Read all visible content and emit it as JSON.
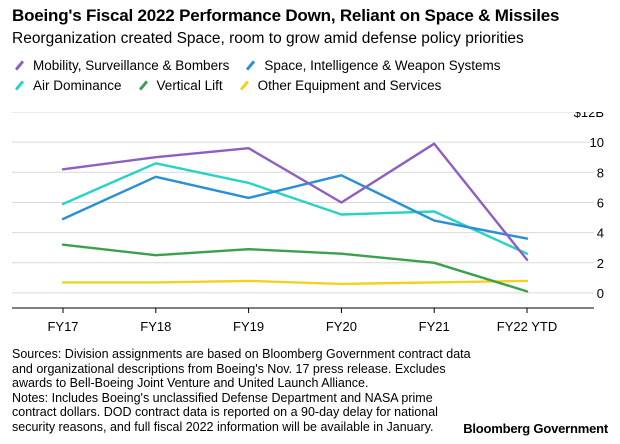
{
  "title": "Boeing's Fiscal 2022 Performance Down, Reliant on Space & Missiles",
  "subtitle": "Reorganization created Space, room to grow amid defense policy priorities",
  "footnote_lines": [
    "Sources: Division assignments are based on Bloomberg Government contract data",
    "and organizational descriptions from Boeing's Nov. 17 press release. Excludes",
    "awards to Bell-Boeing Joint Venture and United Launch Alliance.",
    "Notes: Includes Boeing's unclassified Defense Department and NASA prime",
    "contract dollars. DOD contract data is reported on a 90-day delay for national",
    "security reasons, and full fiscal 2022 information will be available in January."
  ],
  "brand": "Bloomberg Government",
  "chart_data": {
    "type": "line",
    "title": "Boeing's Fiscal 2022 Performance Down, Reliant on Space & Missiles",
    "subtitle": "Reorganization created Space, room to grow amid defense policy priorities",
    "x": [
      "FY17",
      "FY18",
      "FY19",
      "FY20",
      "FY21",
      "FY22 YTD"
    ],
    "yticks": [
      0,
      2,
      4,
      6,
      8,
      10
    ],
    "ytick_labels": [
      "0",
      "2",
      "4",
      "6",
      "8",
      "10"
    ],
    "ytop_label": "$12B",
    "ylim": [
      -1,
      12
    ],
    "grid": true,
    "legend_position": "top",
    "series": [
      {
        "name": "Mobility, Surveillance & Bombers",
        "color": "#8e5fc3",
        "values": [
          8.2,
          9.0,
          9.6,
          6.0,
          9.9,
          2.2
        ]
      },
      {
        "name": "Space, Intelligence & Weapon Systems",
        "color": "#2a8fd6",
        "values": [
          4.9,
          7.7,
          6.3,
          7.8,
          4.8,
          3.6
        ]
      },
      {
        "name": "Air Dominance",
        "color": "#26d3c4",
        "values": [
          5.9,
          8.6,
          7.3,
          5.2,
          5.4,
          2.6
        ]
      },
      {
        "name": "Vertical Lift",
        "color": "#3aa04a",
        "values": [
          3.2,
          2.5,
          2.9,
          2.6,
          2.0,
          0.1
        ]
      },
      {
        "name": "Other Equipment and Services",
        "color": "#f2d21c",
        "values": [
          0.7,
          0.7,
          0.8,
          0.6,
          0.7,
          0.8
        ]
      }
    ]
  }
}
